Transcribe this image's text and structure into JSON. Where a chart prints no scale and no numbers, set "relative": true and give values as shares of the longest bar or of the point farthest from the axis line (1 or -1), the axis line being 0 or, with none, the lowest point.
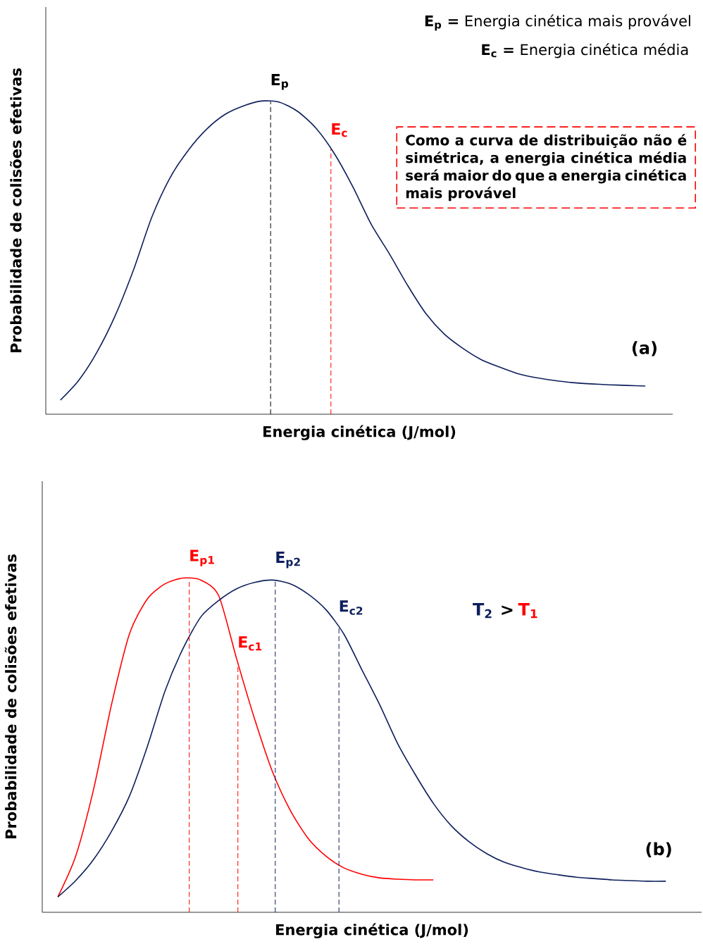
{
  "chart_data": [
    {
      "type": "line",
      "relative": true,
      "xlabel": "Energia cinética (J/mol)",
      "ylabel": "Probabilidade de colisões efetivas",
      "categories": [
        null,
        null,
        null,
        null,
        null,
        null,
        null,
        null,
        null,
        null,
        null,
        null,
        null,
        null,
        null,
        null,
        null,
        null,
        null,
        null,
        null,
        null,
        null,
        null,
        null,
        null,
        null,
        null,
        null,
        null,
        null,
        null,
        null
      ],
      "series": [
        {
          "color": "#0d1f5c",
          "values": [
            0.045,
            0.108,
            0.198,
            0.315,
            0.461,
            0.629,
            0.755,
            0.843,
            0.91,
            0.957,
            0.984,
            1.0,
            0.996,
            0.966,
            0.912,
            0.831,
            0.726,
            0.607,
            0.512,
            0.411,
            0.321,
            0.256,
            0.211,
            0.175,
            0.151,
            0.13,
            0.117,
            0.108,
            0.101,
            0.097,
            0.094,
            0.092,
            0.09
          ]
        }
      ],
      "annotations": [
        "**E$_{p}$ =** Energia cinética mais provável",
        "**E$_{c}$ =** Energia cinética média",
        "Como a curva de distribuição não é simétrica, a energia cinética média será maior do que a energia cinética mais provável",
        "(a)",
        "E$_{p}$",
        "E$_{c}$"
      ]
    },
    {
      "type": "line",
      "relative": true,
      "xlabel": "Energia cinética (J/mol)",
      "ylabel": "Probabilidade de colisões efetivas",
      "categories": [
        null,
        null,
        null,
        null,
        null,
        null,
        null,
        null,
        null,
        null,
        null,
        null,
        null,
        null,
        null,
        null,
        null,
        null,
        null,
        null,
        null,
        null,
        null,
        null,
        null,
        null,
        null,
        null,
        null,
        null,
        null,
        null,
        null,
        null,
        null
      ],
      "series": [
        {
          "color": "#ff0000",
          "values": [
            0.046,
            0.168,
            0.368,
            0.621,
            0.832,
            0.937,
            0.983,
            1.0,
            0.994,
            0.947,
            0.758,
            0.579,
            0.421,
            0.305,
            0.221,
            0.168,
            0.133,
            0.114,
            0.103,
            0.099,
            0.097,
            0.097,
            null,
            null,
            null,
            null,
            null,
            null,
            null,
            null,
            null,
            null,
            null,
            null,
            null
          ]
        },
        {
          "color": "#0d1f5c",
          "values": [
            0.046,
            0.095,
            0.158,
            0.242,
            0.347,
            0.495,
            0.663,
            0.789,
            0.884,
            0.933,
            0.968,
            0.987,
            0.994,
            0.983,
            0.952,
            0.905,
            0.832,
            0.726,
            0.621,
            0.505,
            0.411,
            0.326,
            0.259,
            0.211,
            0.175,
            0.149,
            0.133,
            0.12,
            0.112,
            0.105,
            0.101,
            0.097,
            0.095,
            0.093,
            0.093
          ]
        }
      ],
      "annotations": [
        "(b)",
        "T$_{2}$",
        ">",
        "T$_{1}$",
        "E$_{p1}$",
        "E$_{c1}$",
        "E$_{p2}$",
        "E$_{c2}$"
      ]
    }
  ]
}
